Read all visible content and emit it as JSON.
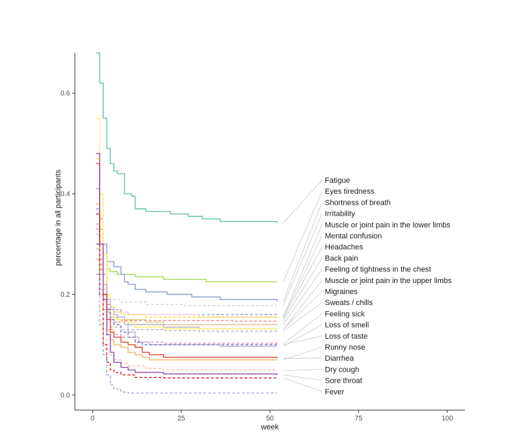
{
  "chart_data": {
    "type": "line",
    "xlabel": "week",
    "ylabel": "percentage in all participants",
    "xlim": [
      -5,
      105
    ],
    "ylim": [
      -0.03,
      0.68
    ],
    "xticks": [
      0,
      25,
      50,
      75,
      100
    ],
    "yticks": [
      0.0,
      0.2,
      0.4,
      0.6
    ],
    "xtick_labels": [
      "0",
      "25",
      "50",
      "75",
      "100"
    ],
    "ytick_labels": [
      "0.0",
      "0.2",
      "0.4",
      "0.6"
    ],
    "grid": false,
    "legend": "right, labels connected to line ends",
    "series": [
      {
        "name": "Fatigue",
        "color": "#66c2a5",
        "dash": false,
        "points": [
          [
            1,
            0.68
          ],
          [
            2,
            0.62
          ],
          [
            3,
            0.55
          ],
          [
            4,
            0.49
          ],
          [
            5,
            0.46
          ],
          [
            6,
            0.445
          ],
          [
            7,
            0.44
          ],
          [
            8,
            0.44
          ],
          [
            9,
            0.4
          ],
          [
            10,
            0.4
          ],
          [
            11,
            0.395
          ],
          [
            12,
            0.37
          ],
          [
            14,
            0.37
          ],
          [
            15,
            0.365
          ],
          [
            20,
            0.365
          ],
          [
            22,
            0.36
          ],
          [
            25,
            0.36
          ],
          [
            27,
            0.355
          ],
          [
            30,
            0.355
          ],
          [
            31,
            0.35
          ],
          [
            35,
            0.35
          ],
          [
            36,
            0.345
          ],
          [
            48,
            0.345
          ],
          [
            50,
            0.345
          ],
          [
            52,
            0.342
          ]
        ]
      },
      {
        "name": "Eyes tiredness",
        "color": "#a6d854",
        "dash": false,
        "points": [
          [
            1,
            0.38
          ],
          [
            2,
            0.33
          ],
          [
            3,
            0.28
          ],
          [
            4,
            0.25
          ],
          [
            5,
            0.245
          ],
          [
            7,
            0.24
          ],
          [
            10,
            0.24
          ],
          [
            12,
            0.235
          ],
          [
            19,
            0.235
          ],
          [
            20,
            0.23
          ],
          [
            31,
            0.23
          ],
          [
            32,
            0.225
          ],
          [
            52,
            0.225
          ]
        ]
      },
      {
        "name": "Shortness of breath",
        "color": "#8da0cb",
        "dash": false,
        "points": [
          [
            1,
            0.41
          ],
          [
            2,
            0.35
          ],
          [
            3,
            0.3
          ],
          [
            4,
            0.265
          ],
          [
            6,
            0.255
          ],
          [
            7,
            0.255
          ],
          [
            8,
            0.24
          ],
          [
            9,
            0.225
          ],
          [
            10,
            0.22
          ],
          [
            12,
            0.21
          ],
          [
            14,
            0.21
          ],
          [
            15,
            0.205
          ],
          [
            20,
            0.205
          ],
          [
            21,
            0.2
          ],
          [
            27,
            0.2
          ],
          [
            28,
            0.195
          ],
          [
            35,
            0.195
          ],
          [
            36,
            0.19
          ],
          [
            50,
            0.19
          ],
          [
            52,
            0.186
          ]
        ]
      },
      {
        "name": "Irritability",
        "color": "#d3d3d3",
        "dash": true,
        "points": [
          [
            1,
            0.3
          ],
          [
            2,
            0.25
          ],
          [
            3,
            0.22
          ],
          [
            4,
            0.2
          ],
          [
            5,
            0.19
          ],
          [
            8,
            0.185
          ],
          [
            15,
            0.18
          ],
          [
            25,
            0.18
          ],
          [
            26,
            0.178
          ],
          [
            52,
            0.178
          ]
        ]
      },
      {
        "name": "Muscle or joint pain in the lower limbs",
        "color": "#8da0cb",
        "dash": true,
        "points": [
          [
            1,
            0.37
          ],
          [
            2,
            0.3
          ],
          [
            3,
            0.24
          ],
          [
            4,
            0.19
          ],
          [
            5,
            0.175
          ],
          [
            6,
            0.17
          ],
          [
            8,
            0.165
          ],
          [
            10,
            0.16
          ],
          [
            20,
            0.16
          ],
          [
            30,
            0.16
          ],
          [
            40,
            0.16
          ],
          [
            52,
            0.155
          ]
        ]
      },
      {
        "name": "Mental confusion",
        "color": "#fccde5",
        "dash": false,
        "points": [
          [
            1,
            0.32
          ],
          [
            2,
            0.27
          ],
          [
            3,
            0.22
          ],
          [
            4,
            0.18
          ],
          [
            5,
            0.17
          ],
          [
            6,
            0.165
          ],
          [
            10,
            0.16
          ],
          [
            20,
            0.16
          ],
          [
            30,
            0.155
          ],
          [
            52,
            0.154
          ]
        ]
      },
      {
        "name": "Headaches",
        "color": "#ffd92f",
        "dash": true,
        "points": [
          [
            1,
            0.47
          ],
          [
            2,
            0.36
          ],
          [
            3,
            0.26
          ],
          [
            4,
            0.2
          ],
          [
            5,
            0.175
          ],
          [
            6,
            0.165
          ],
          [
            8,
            0.16
          ],
          [
            15,
            0.155
          ],
          [
            30,
            0.155
          ],
          [
            52,
            0.152
          ]
        ]
      },
      {
        "name": "Back pain",
        "color": "#fb8072",
        "dash": true,
        "points": [
          [
            1,
            0.33
          ],
          [
            2,
            0.27
          ],
          [
            3,
            0.22
          ],
          [
            4,
            0.18
          ],
          [
            5,
            0.16
          ],
          [
            6,
            0.15
          ],
          [
            8,
            0.148
          ],
          [
            20,
            0.148
          ],
          [
            40,
            0.147
          ],
          [
            52,
            0.147
          ]
        ]
      },
      {
        "name": "Feeling of tightness in the chest",
        "color": "#e5c494",
        "dash": false,
        "points": [
          [
            1,
            0.32
          ],
          [
            2,
            0.26
          ],
          [
            3,
            0.21
          ],
          [
            4,
            0.17
          ],
          [
            5,
            0.155
          ],
          [
            7,
            0.15
          ],
          [
            15,
            0.145
          ],
          [
            20,
            0.14
          ],
          [
            35,
            0.14
          ],
          [
            52,
            0.14
          ]
        ]
      },
      {
        "name": "Muscle or joint pain in the upper limbs",
        "color": "#b3b3b3",
        "dash": false,
        "points": [
          [
            1,
            0.29
          ],
          [
            2,
            0.24
          ],
          [
            3,
            0.2
          ],
          [
            4,
            0.165
          ],
          [
            5,
            0.15
          ],
          [
            6,
            0.145
          ],
          [
            10,
            0.14
          ],
          [
            20,
            0.135
          ],
          [
            30,
            0.132
          ],
          [
            52,
            0.13
          ]
        ]
      },
      {
        "name": "Migraines",
        "color": "#ffed6f",
        "dash": false,
        "points": [
          [
            1,
            0.55
          ],
          [
            2,
            0.4
          ],
          [
            3,
            0.28
          ],
          [
            4,
            0.2
          ],
          [
            5,
            0.16
          ],
          [
            6,
            0.15
          ],
          [
            8,
            0.145
          ],
          [
            12,
            0.135
          ],
          [
            20,
            0.132
          ],
          [
            52,
            0.131
          ]
        ]
      },
      {
        "name": "Sweats / chills",
        "color": "#b3b3b3",
        "dash": true,
        "points": [
          [
            1,
            0.27
          ],
          [
            2,
            0.21
          ],
          [
            3,
            0.17
          ],
          [
            4,
            0.145
          ],
          [
            5,
            0.135
          ],
          [
            8,
            0.13
          ],
          [
            20,
            0.128
          ],
          [
            30,
            0.127
          ],
          [
            52,
            0.127
          ]
        ]
      },
      {
        "name": "Feeling sick",
        "color": "#e78ac3",
        "dash": true,
        "points": [
          [
            1,
            0.34
          ],
          [
            2,
            0.25
          ],
          [
            3,
            0.19
          ],
          [
            4,
            0.15
          ],
          [
            5,
            0.13
          ],
          [
            6,
            0.12
          ],
          [
            8,
            0.115
          ],
          [
            12,
            0.105
          ],
          [
            20,
            0.103
          ],
          [
            52,
            0.102
          ]
        ]
      },
      {
        "name": "Loss of smell",
        "color": "#beaed4",
        "dash": false,
        "points": [
          [
            1,
            0.3
          ],
          [
            2,
            0.26
          ],
          [
            3,
            0.22
          ],
          [
            4,
            0.19
          ],
          [
            5,
            0.17
          ],
          [
            6,
            0.16
          ],
          [
            7,
            0.155
          ],
          [
            9,
            0.14
          ],
          [
            10,
            0.125
          ],
          [
            12,
            0.115
          ],
          [
            13,
            0.105
          ],
          [
            16,
            0.1
          ],
          [
            35,
            0.1
          ],
          [
            36,
            0.097
          ],
          [
            52,
            0.097
          ]
        ]
      },
      {
        "name": "Loss of taste",
        "color": "#7570b3",
        "dash": true,
        "points": [
          [
            1,
            0.3
          ],
          [
            2,
            0.25
          ],
          [
            3,
            0.2
          ],
          [
            4,
            0.17
          ],
          [
            5,
            0.15
          ],
          [
            6,
            0.14
          ],
          [
            8,
            0.125
          ],
          [
            10,
            0.115
          ],
          [
            12,
            0.105
          ],
          [
            14,
            0.1
          ],
          [
            20,
            0.1
          ],
          [
            52,
            0.1
          ]
        ]
      },
      {
        "name": "Runny nose",
        "color": "#fdb462",
        "dash": false,
        "points": [
          [
            1,
            0.38
          ],
          [
            2,
            0.25
          ],
          [
            3,
            0.17
          ],
          [
            4,
            0.13
          ],
          [
            5,
            0.11
          ],
          [
            6,
            0.1
          ],
          [
            8,
            0.095
          ],
          [
            10,
            0.085
          ],
          [
            12,
            0.08
          ],
          [
            14,
            0.075
          ],
          [
            16,
            0.07
          ],
          [
            25,
            0.07
          ],
          [
            52,
            0.07
          ]
        ]
      },
      {
        "name": "Diarrhea",
        "color": "#e34a33",
        "dash": false,
        "points": [
          [
            1,
            0.46
          ],
          [
            2,
            0.3
          ],
          [
            3,
            0.2
          ],
          [
            4,
            0.15
          ],
          [
            5,
            0.125
          ],
          [
            6,
            0.115
          ],
          [
            8,
            0.105
          ],
          [
            10,
            0.1
          ],
          [
            12,
            0.095
          ],
          [
            14,
            0.085
          ],
          [
            16,
            0.08
          ],
          [
            20,
            0.075
          ],
          [
            52,
            0.073
          ]
        ]
      },
      {
        "name": "Dry cough",
        "color": "#fbb4ae",
        "dash": true,
        "points": [
          [
            1,
            0.34
          ],
          [
            2,
            0.22
          ],
          [
            3,
            0.14
          ],
          [
            4,
            0.1
          ],
          [
            5,
            0.08
          ],
          [
            6,
            0.07
          ],
          [
            8,
            0.063
          ],
          [
            10,
            0.058
          ],
          [
            15,
            0.053
          ],
          [
            20,
            0.05
          ],
          [
            52,
            0.048
          ]
        ]
      },
      {
        "name": "Sore throat",
        "color": "#984ea3",
        "dash": false,
        "points": [
          [
            1,
            0.48
          ],
          [
            2,
            0.3
          ],
          [
            3,
            0.19
          ],
          [
            4,
            0.12
          ],
          [
            5,
            0.085
          ],
          [
            6,
            0.065
          ],
          [
            8,
            0.055
          ],
          [
            10,
            0.05
          ],
          [
            12,
            0.045
          ],
          [
            20,
            0.042
          ],
          [
            52,
            0.04
          ]
        ]
      },
      {
        "name": "Fever",
        "color": "#e41a1c",
        "dash": true,
        "points": [
          [
            1,
            0.36
          ],
          [
            2,
            0.2
          ],
          [
            3,
            0.1
          ],
          [
            4,
            0.065
          ],
          [
            5,
            0.05
          ],
          [
            6,
            0.045
          ],
          [
            8,
            0.04
          ],
          [
            12,
            0.035
          ],
          [
            20,
            0.034
          ],
          [
            52,
            0.034
          ]
        ]
      },
      {
        "name": "",
        "color": "#a6a0d6",
        "dash": true,
        "points": [
          [
            1,
            0.24
          ],
          [
            2,
            0.14
          ],
          [
            3,
            0.08
          ],
          [
            4,
            0.04
          ],
          [
            5,
            0.02
          ],
          [
            6,
            0.012
          ],
          [
            8,
            0.006
          ],
          [
            10,
            0.004
          ],
          [
            20,
            0.004
          ],
          [
            52,
            0.004
          ]
        ]
      }
    ],
    "legend_labels": [
      "Fatigue",
      "Eyes tiredness",
      "Shortness of breath",
      "Irritability",
      "Muscle or joint pain in the lower limbs",
      "Mental confusion",
      "Headaches",
      "Back pain",
      "Feeling of tightness in the chest",
      "Muscle or joint pain in the upper limbs",
      "Migraines",
      "Sweats / chills",
      "Feeling sick",
      "Loss of smell",
      "Loss of taste",
      "Runny nose",
      "Diarrhea",
      "Dry cough",
      "Sore throat",
      "Fever"
    ]
  }
}
